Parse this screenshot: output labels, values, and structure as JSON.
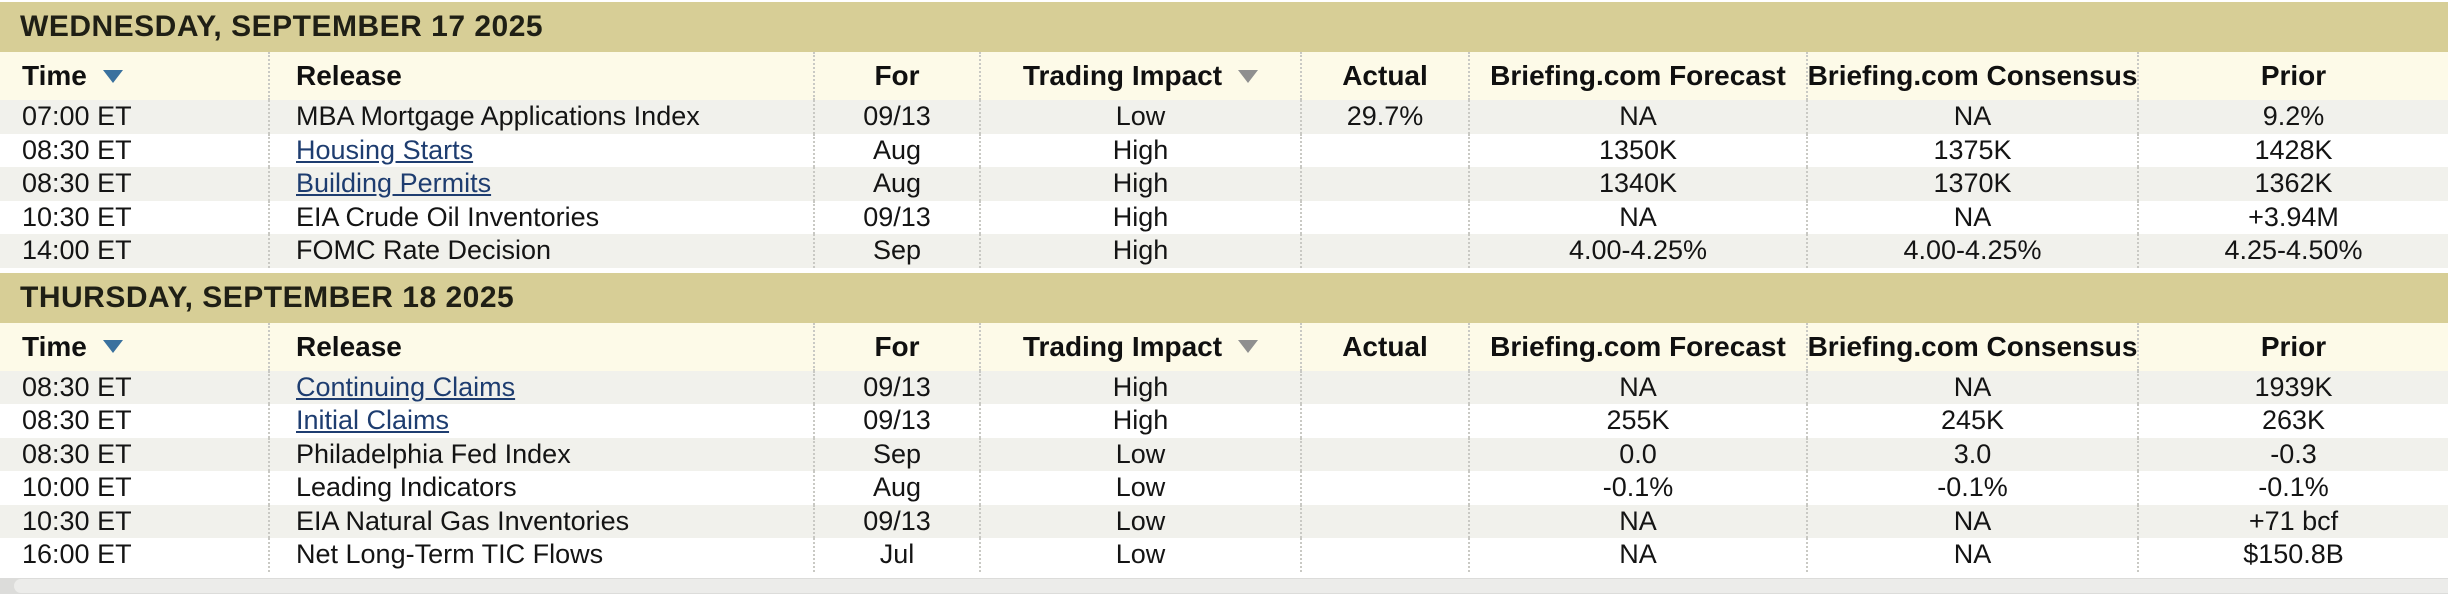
{
  "table": {
    "columns": [
      {
        "key": "time",
        "label": "Time",
        "align": "left",
        "sortable": true,
        "sort_state": "active"
      },
      {
        "key": "release",
        "label": "Release",
        "align": "left",
        "sortable": false
      },
      {
        "key": "for",
        "label": "For",
        "align": "center",
        "sortable": false
      },
      {
        "key": "impact",
        "label": "Trading Impact",
        "align": "center",
        "sortable": true,
        "sort_state": "inactive"
      },
      {
        "key": "actual",
        "label": "Actual",
        "align": "center",
        "sortable": false
      },
      {
        "key": "forecast",
        "label": "Briefing.com Forecast",
        "align": "center",
        "sortable": false
      },
      {
        "key": "consensus",
        "label": "Briefing.com Consensus",
        "align": "center",
        "sortable": false
      },
      {
        "key": "prior",
        "label": "Prior",
        "align": "center",
        "sortable": false
      }
    ],
    "sections": [
      {
        "date": "WEDNESDAY, SEPTEMBER 17 2025",
        "rows": [
          {
            "time": "07:00 ET",
            "release": "MBA Mortgage Applications Index",
            "link": false,
            "for": "09/13",
            "impact": "Low",
            "actual": "29.7%",
            "forecast": "NA",
            "consensus": "NA",
            "prior": "9.2%"
          },
          {
            "time": "08:30 ET",
            "release": "Housing Starts",
            "link": true,
            "for": "Aug",
            "impact": "High",
            "actual": "",
            "forecast": "1350K",
            "consensus": "1375K",
            "prior": "1428K"
          },
          {
            "time": "08:30 ET",
            "release": "Building Permits",
            "link": true,
            "for": "Aug",
            "impact": "High",
            "actual": "",
            "forecast": "1340K",
            "consensus": "1370K",
            "prior": "1362K"
          },
          {
            "time": "10:30 ET",
            "release": "EIA Crude Oil Inventories",
            "link": false,
            "for": "09/13",
            "impact": "High",
            "actual": "",
            "forecast": "NA",
            "consensus": "NA",
            "prior": "+3.94M"
          },
          {
            "time": "14:00 ET",
            "release": "FOMC Rate Decision",
            "link": false,
            "for": "Sep",
            "impact": "High",
            "actual": "",
            "forecast": "4.00-4.25%",
            "consensus": "4.00-4.25%",
            "prior": "4.25-4.50%"
          }
        ]
      },
      {
        "date": "THURSDAY, SEPTEMBER 18 2025",
        "rows": [
          {
            "time": "08:30 ET",
            "release": "Continuing Claims",
            "link": true,
            "for": "09/13",
            "impact": "High",
            "actual": "",
            "forecast": "NA",
            "consensus": "NA",
            "prior": "1939K"
          },
          {
            "time": "08:30 ET",
            "release": "Initial Claims",
            "link": true,
            "for": "09/13",
            "impact": "High",
            "actual": "",
            "forecast": "255K",
            "consensus": "245K",
            "prior": "263K"
          },
          {
            "time": "08:30 ET",
            "release": "Philadelphia Fed Index",
            "link": false,
            "for": "Sep",
            "impact": "Low",
            "actual": "",
            "forecast": "0.0",
            "consensus": "3.0",
            "prior": "-0.3"
          },
          {
            "time": "10:00 ET",
            "release": "Leading Indicators",
            "link": false,
            "for": "Aug",
            "impact": "Low",
            "actual": "",
            "forecast": "-0.1%",
            "consensus": "-0.1%",
            "prior": "-0.1%"
          },
          {
            "time": "10:30 ET",
            "release": "EIA Natural Gas Inventories",
            "link": false,
            "for": "09/13",
            "impact": "Low",
            "actual": "",
            "forecast": "NA",
            "consensus": "NA",
            "prior": "+71 bcf"
          },
          {
            "time": "16:00 ET",
            "release": "Net Long-Term TIC Flows",
            "link": false,
            "for": "Jul",
            "impact": "Low",
            "actual": "",
            "forecast": "NA",
            "consensus": "NA",
            "prior": "$150.8B"
          }
        ]
      }
    ]
  },
  "icons": {
    "time_sort": "sort-down-icon",
    "impact_sort": "sort-down-icon"
  },
  "colors": {
    "date_bar_bg": "#d7ce96",
    "header_row_bg": "#fdfae8",
    "row_alt_bg": "#f1f1ec",
    "row_bg": "#ffffff",
    "link": "#1e3d70",
    "sort_arrow_active": "#3a719e",
    "sort_arrow_inactive": "#8f8f8f",
    "column_divider": "#c9c9c4",
    "scrollbar_track": "#dcdcda",
    "scrollbar_thumb": "#ececea"
  }
}
